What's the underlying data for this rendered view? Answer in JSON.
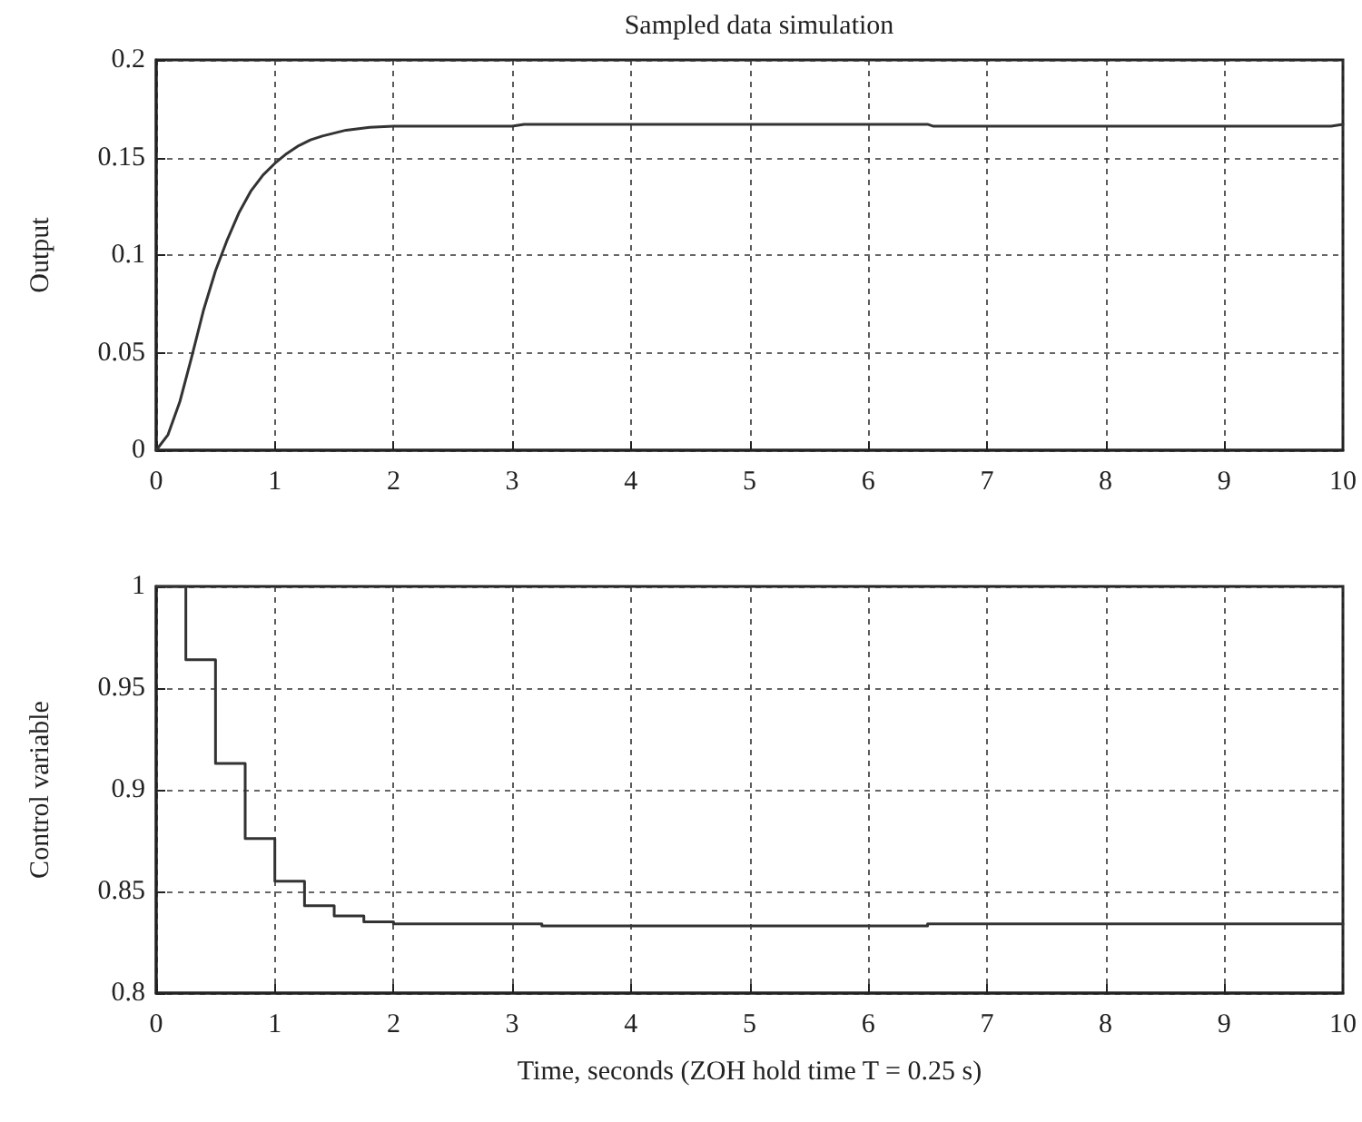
{
  "chart_data": [
    {
      "type": "line",
      "title": "Sampled data simulation",
      "ylabel": "Output",
      "color": "#333333",
      "marker": "none",
      "line_style": "solid",
      "grid": true,
      "x": [
        0,
        0.1,
        0.2,
        0.3,
        0.4,
        0.5,
        0.6,
        0.7,
        0.8,
        0.9,
        1.0,
        1.1,
        1.2,
        1.3,
        1.4,
        1.6,
        1.8,
        2.0,
        3.0,
        3.1,
        6.5,
        6.55,
        9.9,
        10
      ],
      "values": [
        0,
        0.008,
        0.025,
        0.048,
        0.072,
        0.092,
        0.108,
        0.122,
        0.133,
        0.141,
        0.147,
        0.152,
        0.156,
        0.159,
        0.161,
        0.164,
        0.1655,
        0.166,
        0.166,
        0.167,
        0.167,
        0.166,
        0.166,
        0.167
      ],
      "xlim": [
        0,
        10
      ],
      "xticks": [
        0,
        1,
        2,
        3,
        4,
        5,
        6,
        7,
        8,
        9,
        10
      ],
      "ylim": [
        0,
        0.2
      ],
      "yticks": [
        0,
        0.05,
        0.1,
        0.15,
        0.2
      ]
    },
    {
      "type": "step",
      "ylabel": "Control variable",
      "xlabel": "Time, seconds (ZOH hold time T = 0.25 s)",
      "color": "#333333",
      "marker": "none",
      "line_style": "solid",
      "grid": true,
      "x": [
        0,
        0.25,
        0.5,
        0.75,
        1.0,
        1.25,
        1.5,
        1.75,
        2.0,
        3.25,
        6.5,
        10
      ],
      "values": [
        1,
        0.964,
        0.913,
        0.876,
        0.855,
        0.843,
        0.838,
        0.835,
        0.834,
        0.833,
        0.834,
        0.834
      ],
      "xlim": [
        0,
        10
      ],
      "xticks": [
        0,
        1,
        2,
        3,
        4,
        5,
        6,
        7,
        8,
        9,
        10
      ],
      "ylim": [
        0.8,
        1
      ],
      "yticks": [
        0.8,
        0.85,
        0.9,
        0.95,
        1
      ]
    }
  ]
}
